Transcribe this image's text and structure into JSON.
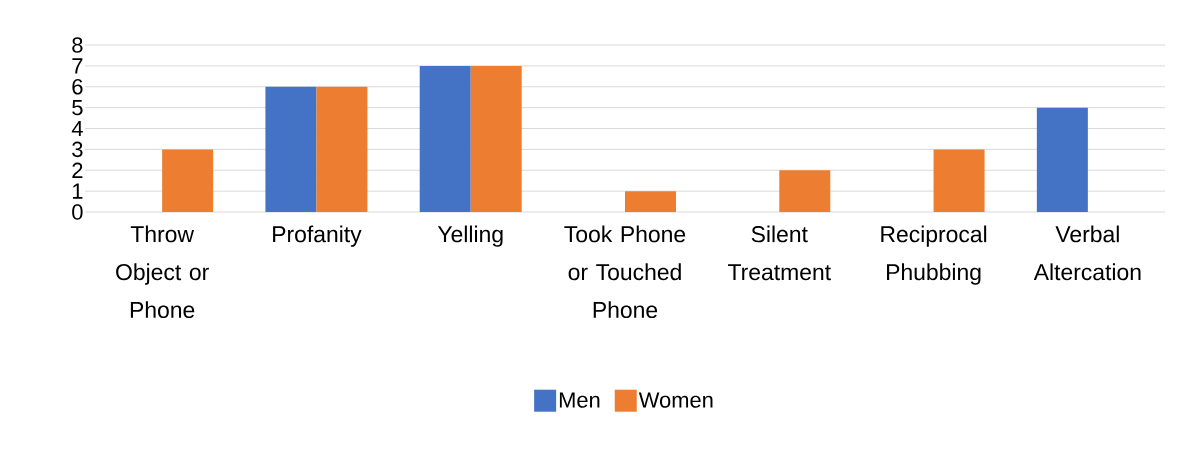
{
  "chart_data": {
    "type": "bar",
    "categories": [
      "Throw Object or Phone",
      "Profanity",
      "Yelling",
      "Took Phone or Touched Phone",
      "Silent Treatment",
      "Reciprocal Phubbing",
      "Verbal Altercation"
    ],
    "series": [
      {
        "name": "Men",
        "color": "#4472c4",
        "values": [
          0,
          6,
          7,
          0,
          0,
          0,
          5
        ]
      },
      {
        "name": "Women",
        "color": "#ed7d31",
        "values": [
          3,
          6,
          7,
          1,
          2,
          3,
          0
        ]
      }
    ],
    "ylim": [
      0,
      8
    ],
    "yticks": [
      0,
      1,
      2,
      3,
      4,
      5,
      6,
      7,
      8
    ],
    "grid": "y",
    "legend": "bottom"
  }
}
